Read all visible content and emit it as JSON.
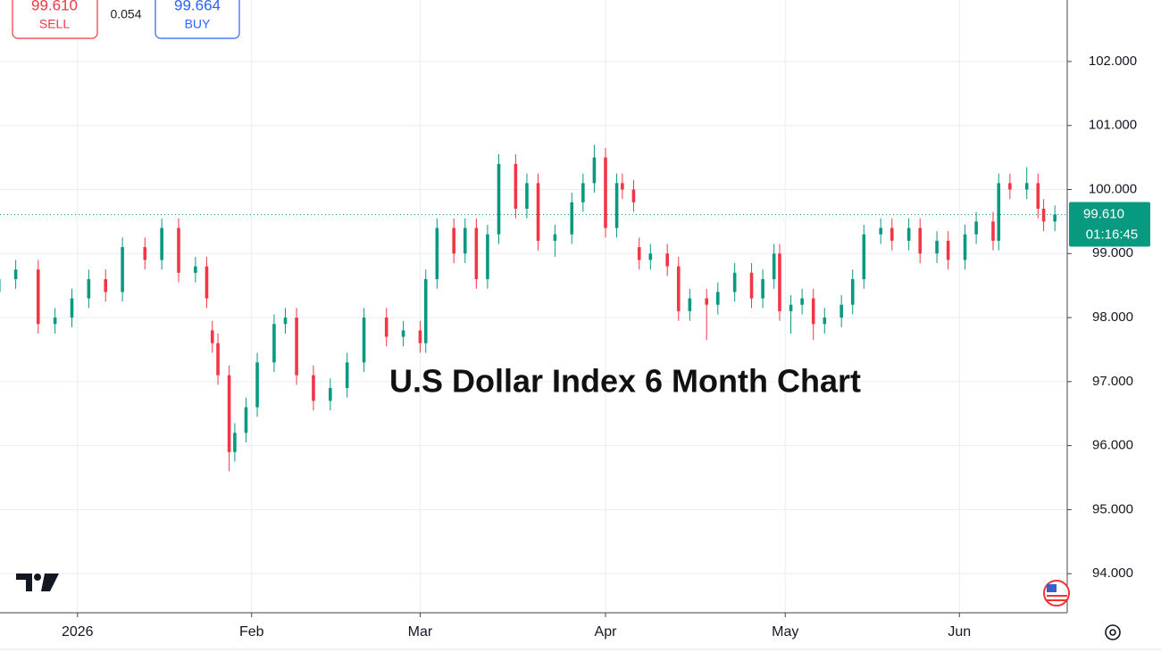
{
  "chart_data": {
    "type": "candlestick",
    "annotation": "U.S Dollar Index 6 Month Chart",
    "x": [
      -14,
      -11,
      -7,
      -4,
      -1,
      2,
      5,
      8,
      12,
      15,
      18,
      21,
      23,
      24,
      25,
      27,
      28,
      30,
      32,
      35,
      37,
      39,
      42,
      45,
      48,
      51,
      55,
      58,
      61,
      62,
      64,
      67,
      69,
      71,
      73,
      75,
      78,
      80,
      82,
      85,
      88,
      90,
      92,
      94,
      96,
      97,
      99,
      100,
      102,
      105,
      107,
      109,
      112,
      114,
      117,
      120,
      122,
      124,
      125,
      127,
      129,
      131,
      133,
      136,
      138,
      140,
      143,
      145,
      148,
      150,
      153,
      155,
      158,
      160,
      163,
      164,
      166,
      169,
      171,
      172,
      174
    ],
    "open": [
      98.4,
      98.6,
      98.75,
      97.9,
      98.0,
      98.3,
      98.6,
      98.4,
      99.1,
      98.9,
      99.4,
      98.7,
      98.8,
      97.8,
      97.6,
      97.1,
      95.9,
      96.2,
      96.6,
      97.3,
      97.9,
      98.0,
      97.1,
      96.7,
      96.9,
      97.3,
      98.0,
      97.7,
      97.8,
      97.6,
      98.6,
      99.4,
      99.0,
      99.4,
      98.6,
      99.3,
      100.4,
      99.7,
      100.1,
      99.2,
      99.3,
      99.8,
      100.1,
      100.5,
      99.4,
      100.1,
      100.0,
      99.1,
      98.9,
      99.0,
      98.8,
      98.1,
      98.3,
      98.2,
      98.4,
      98.7,
      98.3,
      98.6,
      99.0,
      98.1,
      98.2,
      98.3,
      97.9,
      98.0,
      98.2,
      98.6,
      99.3,
      99.4,
      99.2,
      99.4,
      99.0,
      99.2,
      98.9,
      99.3,
      99.5,
      99.2,
      100.1,
      100.0,
      100.1,
      99.7,
      99.5
    ],
    "high": [
      98.75,
      98.9,
      98.9,
      98.15,
      98.45,
      98.75,
      98.75,
      99.25,
      99.25,
      99.55,
      99.55,
      98.95,
      98.95,
      97.95,
      97.75,
      97.25,
      96.35,
      96.75,
      97.45,
      98.05,
      98.15,
      98.15,
      97.25,
      97.05,
      97.45,
      98.15,
      98.15,
      97.95,
      97.95,
      98.75,
      99.55,
      99.55,
      99.55,
      99.55,
      99.45,
      100.55,
      100.55,
      100.25,
      100.25,
      99.45,
      99.95,
      100.25,
      100.7,
      100.65,
      100.25,
      100.25,
      100.15,
      99.25,
      99.15,
      99.15,
      98.95,
      98.45,
      98.45,
      98.55,
      98.85,
      98.85,
      98.75,
      99.15,
      99.15,
      98.35,
      98.45,
      98.45,
      98.15,
      98.35,
      98.75,
      99.45,
      99.55,
      99.55,
      99.55,
      99.55,
      99.35,
      99.35,
      99.45,
      99.65,
      99.65,
      100.25,
      100.25,
      100.35,
      100.25,
      99.85,
      99.75
    ],
    "low": [
      98.25,
      98.45,
      97.75,
      97.75,
      97.85,
      98.15,
      98.25,
      98.25,
      98.75,
      98.75,
      98.55,
      98.55,
      98.15,
      97.45,
      96.95,
      95.6,
      95.75,
      96.05,
      96.45,
      97.15,
      97.75,
      96.95,
      96.55,
      96.55,
      96.75,
      97.15,
      97.55,
      97.55,
      97.45,
      97.45,
      98.45,
      98.85,
      98.85,
      98.45,
      98.45,
      99.15,
      99.55,
      99.55,
      99.05,
      98.95,
      99.15,
      99.65,
      99.95,
      99.25,
      99.25,
      99.85,
      99.65,
      98.75,
      98.75,
      98.65,
      97.95,
      97.95,
      97.65,
      98.05,
      98.25,
      98.15,
      98.15,
      98.45,
      97.95,
      97.75,
      98.05,
      97.65,
      97.75,
      97.85,
      98.05,
      98.45,
      99.15,
      99.05,
      99.05,
      98.85,
      98.85,
      98.75,
      98.75,
      99.15,
      99.05,
      99.05,
      99.85,
      99.85,
      99.55,
      99.35,
      99.35
    ],
    "close": [
      98.6,
      98.75,
      97.9,
      98.0,
      98.3,
      98.6,
      98.4,
      99.1,
      98.9,
      99.4,
      98.7,
      98.8,
      98.3,
      97.6,
      97.1,
      95.9,
      96.2,
      96.6,
      97.3,
      97.9,
      98.0,
      97.1,
      96.7,
      96.9,
      97.3,
      98.0,
      97.7,
      97.8,
      97.6,
      98.6,
      99.4,
      99.0,
      99.4,
      98.6,
      99.3,
      100.4,
      99.7,
      100.1,
      99.2,
      99.3,
      99.8,
      100.1,
      100.5,
      99.4,
      100.1,
      100.0,
      99.8,
      98.9,
      99.0,
      98.8,
      98.1,
      98.3,
      98.2,
      98.4,
      98.7,
      98.3,
      98.6,
      99.0,
      98.1,
      98.2,
      98.3,
      97.9,
      98.0,
      98.2,
      98.6,
      99.3,
      99.4,
      99.2,
      99.4,
      99.0,
      99.2,
      98.9,
      99.3,
      99.5,
      99.2,
      100.1,
      100.0,
      100.1,
      99.7,
      99.5,
      99.61
    ],
    "up_color": "#089981",
    "down_color": "#f23645",
    "xlim": [
      -13.8,
      176.2
    ],
    "xticks": [
      {
        "value": 0,
        "label": "2026"
      },
      {
        "value": 31,
        "label": "Feb"
      },
      {
        "value": 61,
        "label": "Mar"
      },
      {
        "value": 94,
        "label": "Apr"
      },
      {
        "value": 126,
        "label": "May"
      },
      {
        "value": 157,
        "label": "Jun"
      }
    ],
    "ylim": [
      93.39,
      102.96
    ],
    "yticks": [
      {
        "value": 94,
        "label": "94.000"
      },
      {
        "value": 95,
        "label": "95.000"
      },
      {
        "value": 96,
        "label": "96.000"
      },
      {
        "value": 97,
        "label": "97.000"
      },
      {
        "value": 98,
        "label": "98.000"
      },
      {
        "value": 99,
        "label": "99.000"
      },
      {
        "value": 100,
        "label": "100.000"
      },
      {
        "value": 101,
        "label": "101.000"
      },
      {
        "value": 102,
        "label": "102.000"
      }
    ],
    "grid": true,
    "last_price": {
      "value": 99.61,
      "label": "99.610"
    },
    "countdown": "01:16:45",
    "sell_price": "99.610",
    "sell_label": "SELL",
    "spread": "0.054",
    "buy_price": "99.664",
    "buy_label": "BUY"
  }
}
